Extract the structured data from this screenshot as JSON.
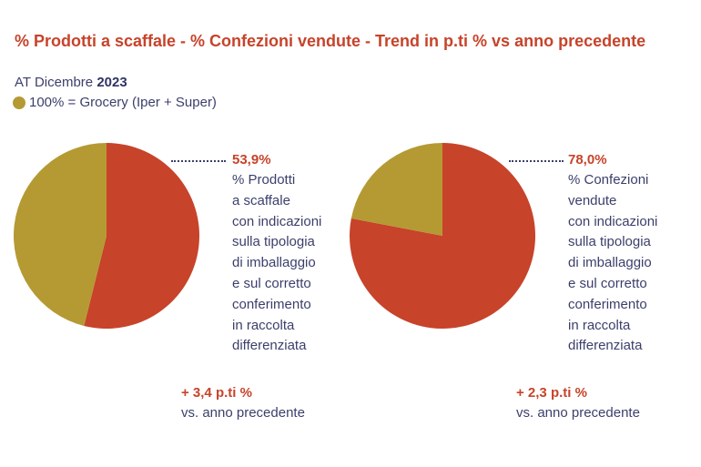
{
  "title": "% Prodotti a scaffale - % Confezioni vendute - Trend in p.ti % vs anno precedente",
  "subtitle": {
    "prefix": "AT Dicembre",
    "year": "2023"
  },
  "legend": {
    "label": "100% = Grocery (Iper + Super)",
    "color": "#b59a33"
  },
  "colors": {
    "highlight": "#c7432a",
    "base": "#b59a33",
    "text": "#3b3f6b"
  },
  "chart_data": [
    {
      "type": "pie",
      "slices": [
        {
          "label": "% Prodotti a scaffale con indicazioni sulla tipologia di imballaggio e sul corretto conferimento in raccolta differenziata",
          "value": 53.9,
          "color": "#c7432a"
        },
        {
          "label": "100% = Grocery (Iper + Super)",
          "value": 46.1,
          "color": "#b59a33"
        }
      ],
      "value_label": "53,9%",
      "description": [
        "% Prodotti",
        "a scaffale",
        "con indicazioni",
        "sulla tipologia",
        "di imballaggio",
        "e sul corretto",
        "conferimento",
        "in raccolta",
        "differenziata"
      ],
      "trend": "+ 3,4 p.ti %",
      "trend_label": "vs. anno precedente"
    },
    {
      "type": "pie",
      "slices": [
        {
          "label": "% Confezioni vendute con indicazioni sulla tipologia di imballaggio e sul corretto conferimento in raccolta differenziata",
          "value": 78.0,
          "color": "#c7432a"
        },
        {
          "label": "100% = Grocery (Iper + Super)",
          "value": 22.0,
          "color": "#b59a33"
        }
      ],
      "value_label": "78,0%",
      "description": [
        "% Confezioni",
        "vendute",
        "con indicazioni",
        "sulla tipologia",
        "di imballaggio",
        "e sul corretto",
        "conferimento",
        "in raccolta",
        "differenziata"
      ],
      "trend": "+ 2,3 p.ti %",
      "trend_label": "vs. anno precedente"
    }
  ]
}
